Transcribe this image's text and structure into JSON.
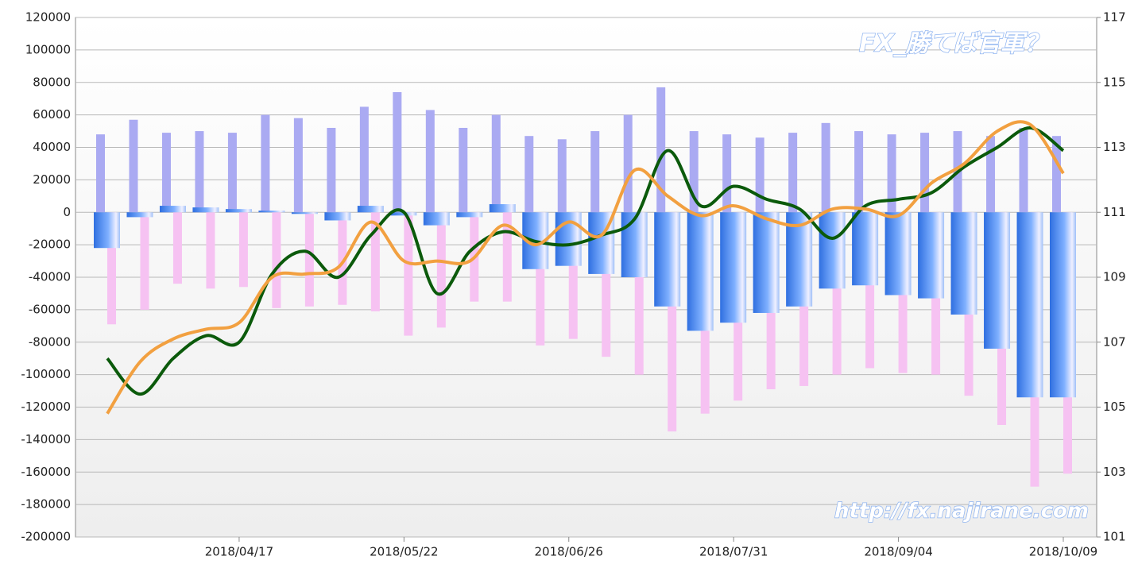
{
  "chart_data": {
    "type": "bar-line",
    "annotations": [
      "FX_勝てば官軍？",
      "http://fx.najirane.com"
    ],
    "categories": [
      null,
      null,
      null,
      null,
      "2018/04/17",
      null,
      null,
      null,
      null,
      "2018/05/22",
      null,
      null,
      null,
      null,
      "2018/06/26",
      null,
      null,
      null,
      null,
      "2018/07/31",
      null,
      null,
      null,
      null,
      "2018/09/04",
      null,
      null,
      null,
      null,
      "2018/10/09"
    ],
    "ylim": [
      -200000,
      120000
    ],
    "yticks": [
      -200000,
      -180000,
      -160000,
      -140000,
      -120000,
      -100000,
      -80000,
      -60000,
      -40000,
      -20000,
      0,
      20000,
      40000,
      60000,
      80000,
      100000,
      120000
    ],
    "y2lim": [
      101,
      117
    ],
    "y2ticks": [
      101,
      103,
      105,
      107,
      109,
      111,
      113,
      115,
      117
    ],
    "grid": true,
    "series": [
      {
        "type": "bar",
        "color": "#aaaaf2",
        "values": [
          48000,
          57000,
          49000,
          50000,
          49000,
          60000,
          58000,
          52000,
          65000,
          74000,
          63000,
          52000,
          60000,
          47000,
          45000,
          50000,
          60000,
          77000,
          50000,
          48000,
          46000,
          49000,
          55000,
          50000,
          48000,
          49000,
          50000,
          47000,
          52000,
          47000
        ]
      },
      {
        "type": "bar",
        "color": "#f6c2f2",
        "values": [
          -69000,
          -60000,
          -44000,
          -47000,
          -46000,
          -59000,
          -58000,
          -57000,
          -61000,
          -76000,
          -71000,
          -55000,
          -55000,
          -82000,
          -78000,
          -89000,
          -100000,
          -135000,
          -124000,
          -116000,
          -109000,
          -107000,
          -100000,
          -96000,
          -99000,
          -100000,
          -113000,
          -131000,
          -169000,
          -161000
        ]
      },
      {
        "type": "bar",
        "color": "#3a7ae6",
        "values": [
          -22000,
          -3000,
          4000,
          3000,
          2000,
          1000,
          -1000,
          -5000,
          4000,
          -2000,
          -8000,
          -3000,
          5000,
          -35000,
          -33000,
          -38000,
          -40000,
          -58000,
          -73000,
          -68000,
          -62000,
          -58000,
          -47000,
          -45000,
          -51000,
          -53000,
          -63000,
          -84000,
          -114000,
          -114000
        ]
      },
      {
        "type": "line",
        "axis": "y2",
        "color": "#0b5a0b",
        "values": [
          106.5,
          105.4,
          106.5,
          107.2,
          107.0,
          109.1,
          109.8,
          109.0,
          110.3,
          111.0,
          108.5,
          109.8,
          110.4,
          110.1,
          110.0,
          110.3,
          110.8,
          112.9,
          111.2,
          111.8,
          111.4,
          111.1,
          110.2,
          111.2,
          111.4,
          111.6,
          112.4,
          113.0,
          113.6,
          112.9
        ]
      },
      {
        "type": "line",
        "axis": "y2",
        "color": "#f2a040",
        "values": [
          104.8,
          106.4,
          107.1,
          107.4,
          107.6,
          109.0,
          109.1,
          109.3,
          110.7,
          109.5,
          109.5,
          109.5,
          110.6,
          110.0,
          110.7,
          110.3,
          112.3,
          111.5,
          110.9,
          111.2,
          110.8,
          110.6,
          111.1,
          111.1,
          110.9,
          111.9,
          112.5,
          113.5,
          113.7,
          112.2
        ]
      }
    ]
  }
}
